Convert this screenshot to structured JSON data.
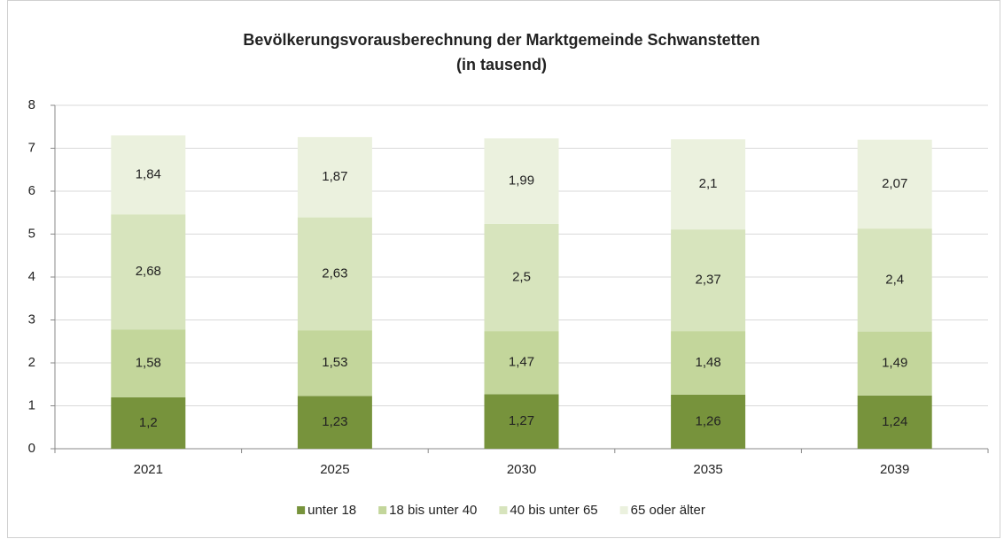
{
  "chart_data": {
    "type": "stacked_bar",
    "title": "Bevölkerungsvorausberechnung der Marktgemeinde Schwanstetten",
    "subtitle": "(in tausend)",
    "categories": [
      "2021",
      "2025",
      "2030",
      "2035",
      "2039"
    ],
    "series": [
      {
        "name": "unter 18",
        "color": "#77933c",
        "values": [
          1.2,
          1.23,
          1.27,
          1.26,
          1.24
        ],
        "value_labels": [
          "1,2",
          "1,23",
          "1,27",
          "1,26",
          "1,24"
        ]
      },
      {
        "name": "18 bis unter 40",
        "color": "#c3d69b",
        "values": [
          1.58,
          1.53,
          1.47,
          1.48,
          1.49
        ],
        "value_labels": [
          "1,58",
          "1,53",
          "1,47",
          "1,48",
          "1,49"
        ]
      },
      {
        "name": "40 bis unter 65",
        "color": "#d7e4bd",
        "values": [
          2.68,
          2.63,
          2.5,
          2.37,
          2.4
        ],
        "value_labels": [
          "2,68",
          "2,63",
          "2,5",
          "2,37",
          "2,4"
        ]
      },
      {
        "name": "65 oder älter",
        "color": "#ebf1de",
        "values": [
          1.84,
          1.87,
          1.99,
          2.1,
          2.07
        ],
        "value_labels": [
          "1,84",
          "1,87",
          "1,99",
          "2,1",
          "2,07"
        ]
      }
    ],
    "ylim": [
      0,
      8
    ],
    "yticks": [
      0,
      1,
      2,
      3,
      4,
      5,
      6,
      7,
      8
    ],
    "grid": true,
    "legend": "bottom"
  }
}
